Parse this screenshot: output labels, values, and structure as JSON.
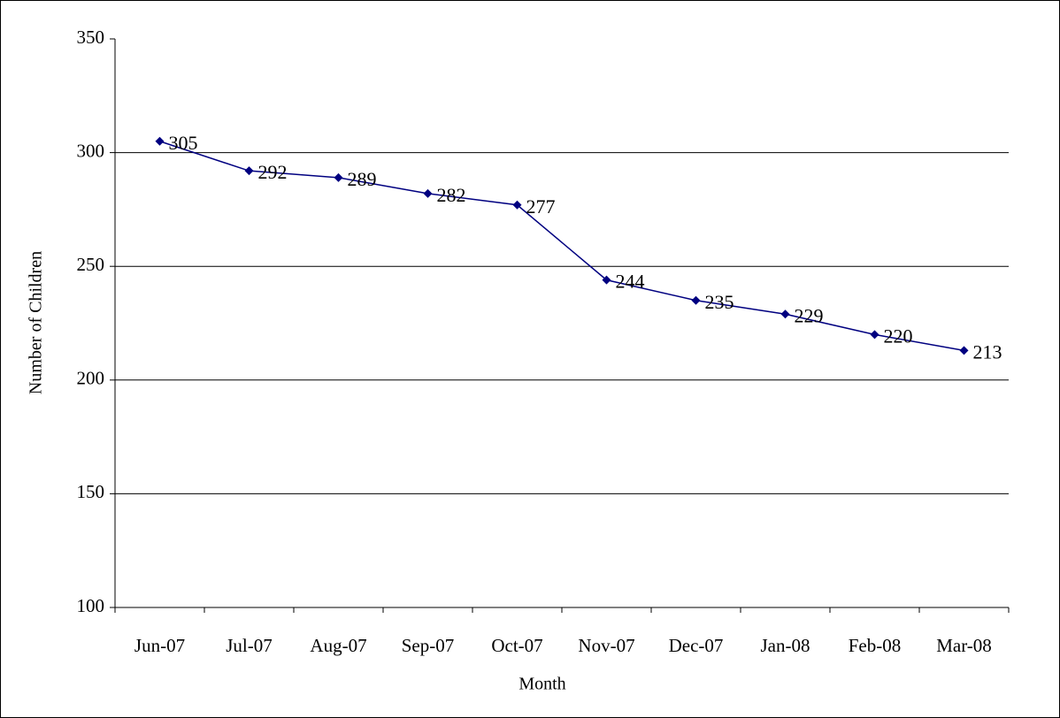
{
  "chart_data": {
    "type": "line",
    "y_label": "Number of Children",
    "x_label": "Month",
    "categories": [
      "Jun-07",
      "Jul-07",
      "Aug-07",
      "Sep-07",
      "Oct-07",
      "Nov-07",
      "Dec-07",
      "Jan-08",
      "Feb-08",
      "Mar-08"
    ],
    "series": [
      {
        "name": "Number of Children",
        "color": "#000080",
        "values": [
          305,
          292,
          289,
          282,
          277,
          244,
          235,
          229,
          220,
          213
        ]
      }
    ],
    "ylim": [
      100,
      350
    ],
    "yticks": [
      100,
      150,
      200,
      250,
      300,
      350
    ],
    "grid": true
  }
}
